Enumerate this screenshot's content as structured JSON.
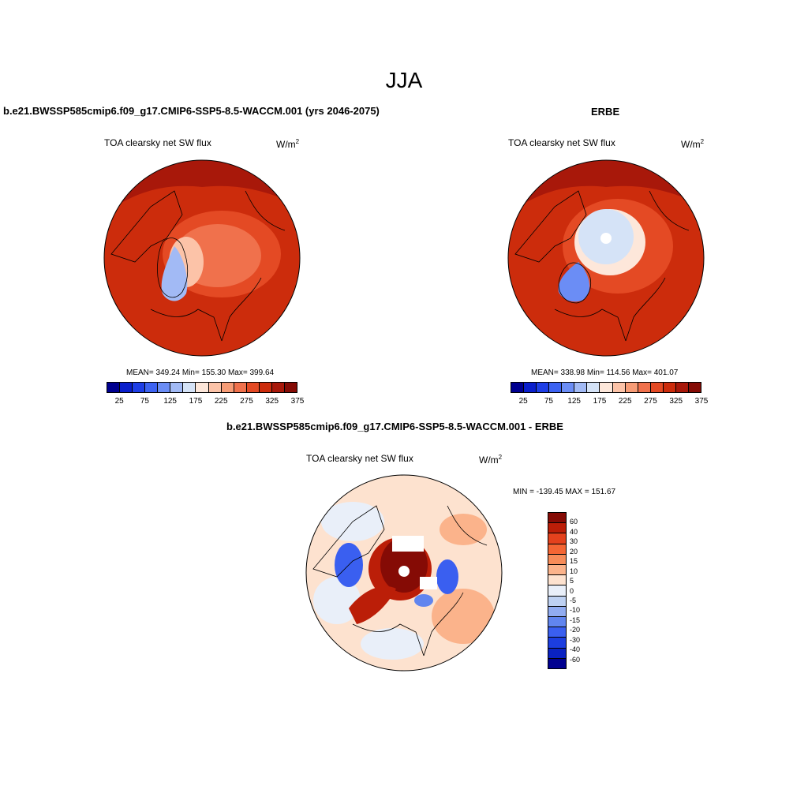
{
  "figure": {
    "title": "JJA"
  },
  "panels": {
    "model": {
      "title": "b.e21.BWSSP585cmip6.f09_g17.CMIP6-SSP5-8.5-WACCM.001 (yrs 2046-2075)",
      "variable": "TOA clearsky net SW flux",
      "units_base": "W/m",
      "units_exp": "2",
      "stats": "MEAN= 349.24  Min= 155.30  Max= 399.64",
      "colorbar_ticks": [
        "25",
        "75",
        "125",
        "175",
        "225",
        "275",
        "325",
        "375"
      ]
    },
    "obs": {
      "title": "ERBE",
      "variable": "TOA clearsky net SW flux",
      "units_base": "W/m",
      "units_exp": "2",
      "stats": "MEAN= 338.98  Min= 114.56  Max= 401.07",
      "colorbar_ticks": [
        "25",
        "75",
        "125",
        "175",
        "225",
        "275",
        "325",
        "375"
      ]
    },
    "diff": {
      "title": "b.e21.BWSSP585cmip6.f09_g17.CMIP6-SSP5-8.5-WACCM.001 - ERBE",
      "variable": "TOA clearsky net SW flux",
      "units_base": "W/m",
      "units_exp": "2",
      "stats": "MIN = -139.45 MAX = 151.67",
      "colorbar_ticks": [
        "60",
        "40",
        "30",
        "20",
        "15",
        "10",
        "5",
        "0",
        "-5",
        "-10",
        "-15",
        "-20",
        "-30",
        "-40",
        "-60"
      ]
    }
  },
  "colors": {
    "abs_scale": [
      "#000090",
      "#0a1fcc",
      "#1e3ee6",
      "#3d63f2",
      "#6b8df5",
      "#a2baf5",
      "#d5e3f7",
      "#fde7da",
      "#fcc3a8",
      "#f79c76",
      "#f0714c",
      "#e44a24",
      "#cc2c0c",
      "#a8180a",
      "#850b05"
    ],
    "diff_scale": [
      "#850b05",
      "#bb1e08",
      "#e4421d",
      "#f46634",
      "#f78c59",
      "#fbb38b",
      "#fde2cf",
      "#e9eff9",
      "#bed1f2",
      "#91acf1",
      "#6185ef",
      "#3a5ff0",
      "#1c3ee0",
      "#0a22c2",
      "#000090"
    ]
  }
}
